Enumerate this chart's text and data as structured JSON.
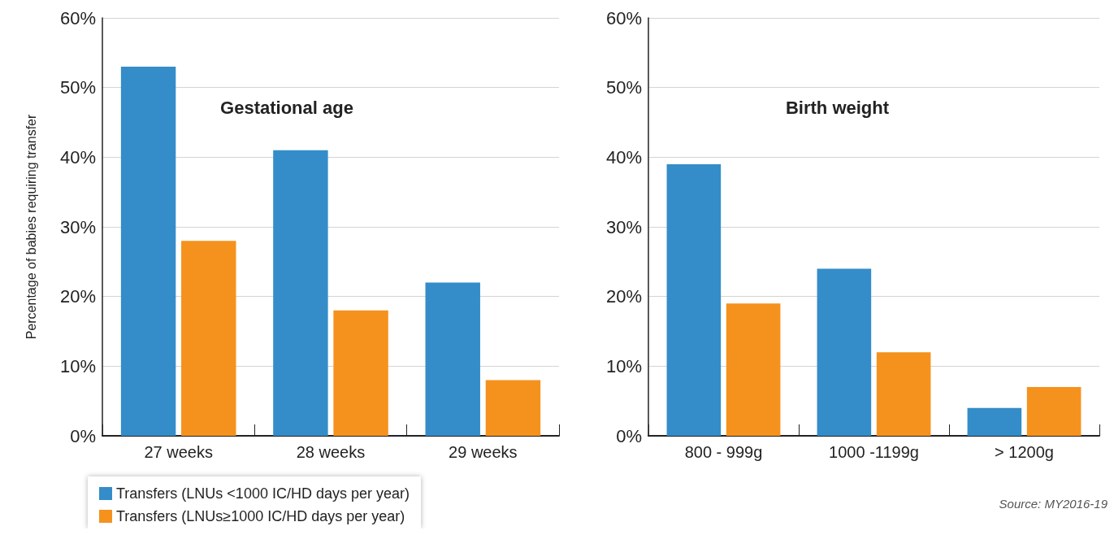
{
  "chart_data": [
    {
      "type": "bar",
      "title": "Gestational age",
      "ylabel": "Percentage of babies requiring transfer",
      "categories": [
        "27 weeks",
        "28 weeks",
        "29 weeks"
      ],
      "series": [
        {
          "name": "Transfers (LNUs <1000 IC/HD days per year)",
          "color": "#348dc9",
          "values": [
            53,
            41,
            22
          ]
        },
        {
          "name": "Transfers (LNUs≥1000 IC/HD days per year)",
          "color": "#f5921e",
          "values": [
            28,
            18,
            8
          ]
        }
      ],
      "ylim": [
        0,
        60
      ],
      "yticks": [
        {
          "value": 0,
          "label": "0%"
        },
        {
          "value": 10,
          "label": "10%"
        },
        {
          "value": 20,
          "label": "20%"
        },
        {
          "value": 30,
          "label": "30%"
        },
        {
          "value": 40,
          "label": "40%"
        },
        {
          "value": 50,
          "label": "50%"
        },
        {
          "value": 60,
          "label": "60%"
        }
      ],
      "grid": "y",
      "legend": "bottom left"
    },
    {
      "type": "bar",
      "title": "Birth weight",
      "categories": [
        "800 - 999g",
        "1000 -1199g",
        "> 1200g"
      ],
      "series": [
        {
          "color": "#348dc9",
          "values": [
            39,
            24,
            4
          ]
        },
        {
          "color": "#f5921e",
          "values": [
            19,
            12,
            7
          ]
        }
      ],
      "ylim": [
        0,
        60
      ],
      "yticks": [
        {
          "value": 0,
          "label": "0%"
        },
        {
          "value": 10,
          "label": "10%"
        },
        {
          "value": 20,
          "label": "20%"
        },
        {
          "value": 30,
          "label": "30%"
        },
        {
          "value": 40,
          "label": "40%"
        },
        {
          "value": 50,
          "label": "50%"
        },
        {
          "value": 60,
          "label": "60%"
        }
      ],
      "grid": "y",
      "legend": false,
      "annotations": [
        "Source: MY2016-19"
      ]
    }
  ]
}
